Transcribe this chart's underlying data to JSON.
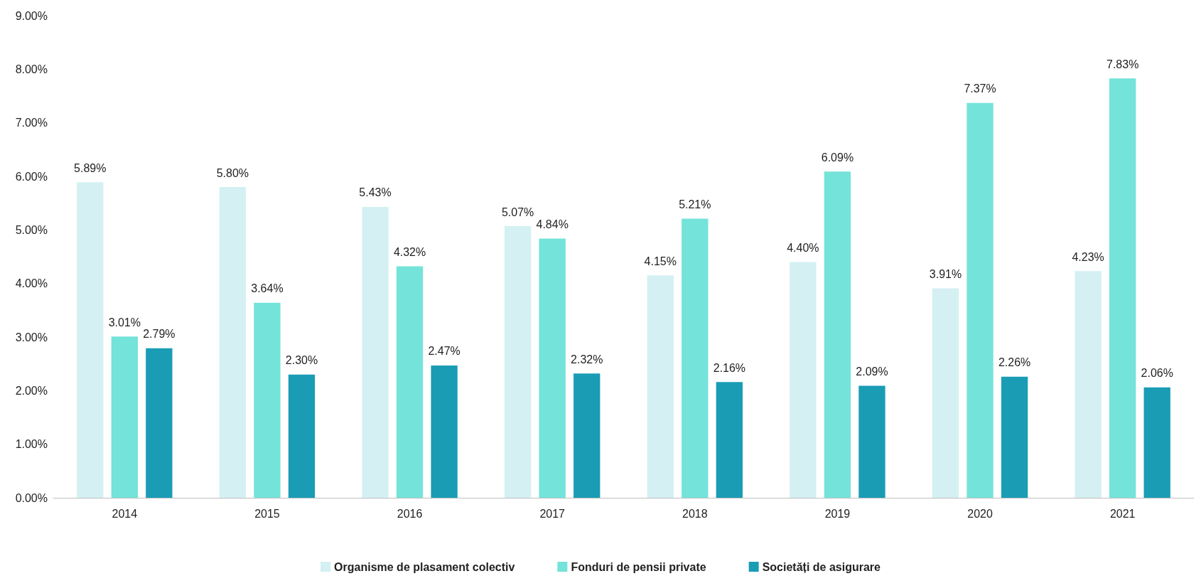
{
  "chart_data": {
    "type": "bar",
    "categories": [
      "2014",
      "2015",
      "2016",
      "2017",
      "2018",
      "2019",
      "2020",
      "2021"
    ],
    "series": [
      {
        "name": "Organisme de plasament colectiv",
        "color": "#d4f0f2",
        "values": [
          5.89,
          5.8,
          5.43,
          5.07,
          4.15,
          4.4,
          3.91,
          4.23
        ],
        "value_labels": [
          "5.89%",
          "5.80%",
          "5.43%",
          "5.07%",
          "4.15%",
          "4.40%",
          "3.91%",
          "4.23%"
        ]
      },
      {
        "name": "Fonduri de pensii private",
        "color": "#74e3d9",
        "values": [
          3.01,
          3.64,
          4.32,
          4.84,
          5.21,
          6.09,
          7.37,
          7.83
        ],
        "value_labels": [
          "3.01%",
          "3.64%",
          "4.32%",
          "4.84%",
          "5.21%",
          "6.09%",
          "7.37%",
          "7.83%"
        ]
      },
      {
        "name": "Societăți de asigurare",
        "color": "#1a9cb5",
        "values": [
          2.79,
          2.3,
          2.47,
          2.32,
          2.16,
          2.09,
          2.26,
          2.06
        ],
        "value_labels": [
          "2.79%",
          "2.30%",
          "2.47%",
          "2.32%",
          "2.16%",
          "2.09%",
          "2.26%",
          "2.06%"
        ]
      }
    ],
    "ylim": [
      0,
      9
    ],
    "yticks": [
      {
        "value": 0,
        "label": "0.00%"
      },
      {
        "value": 1,
        "label": "1.00%"
      },
      {
        "value": 2,
        "label": "2.00%"
      },
      {
        "value": 3,
        "label": "3.00%"
      },
      {
        "value": 4,
        "label": "4.00%"
      },
      {
        "value": 5,
        "label": "5.00%"
      },
      {
        "value": 6,
        "label": "6.00%"
      },
      {
        "value": 7,
        "label": "7.00%"
      },
      {
        "value": 8,
        "label": "8.00%"
      },
      {
        "value": 9,
        "label": "9.00%"
      }
    ],
    "grid": false,
    "legend": "bottom"
  }
}
